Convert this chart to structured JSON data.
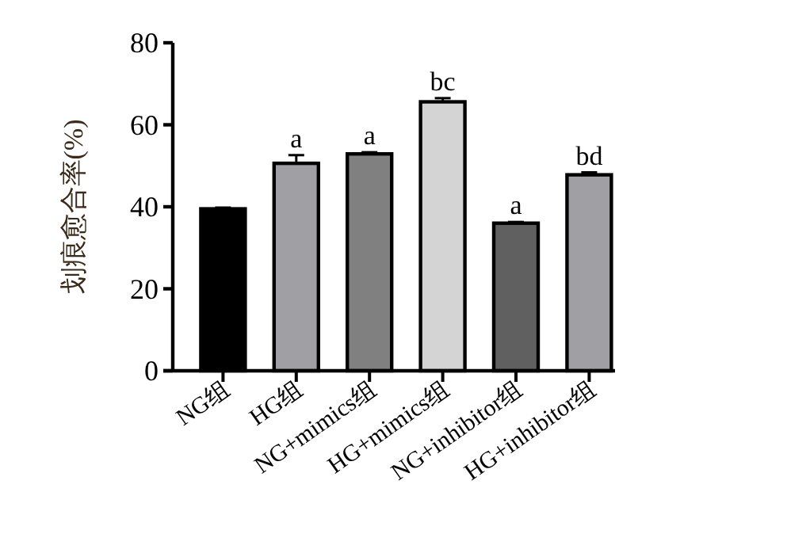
{
  "chart_data": {
    "type": "bar",
    "ylabel": "划痕愈合率(%)",
    "categories": [
      "NG组",
      "HG组",
      "NG+mimics组",
      "HG+mimics组",
      "NG+inhibitor组",
      "HG+inhibitor组"
    ],
    "values": [
      39.5,
      50.6,
      52.9,
      65.6,
      36.0,
      47.8
    ],
    "errors": [
      0.3,
      2.0,
      0.4,
      0.9,
      0.3,
      0.6
    ],
    "colors": [
      "#000000",
      "#a0a0a4",
      "#808080",
      "#d4d4d4",
      "#606060",
      "#a0a0a4"
    ],
    "ylim": [
      0,
      80
    ],
    "yticks": [
      0,
      20,
      40,
      60,
      80
    ],
    "grid": false,
    "annotations": [
      {
        "text": "a",
        "x": "HG组",
        "y": 52.6
      },
      {
        "text": "a",
        "x": "NG+mimics组",
        "y": 53.3
      },
      {
        "text": "bc",
        "x": "HG+mimics组",
        "y": 66.5
      },
      {
        "text": "a",
        "x": "NG+inhibitor组",
        "y": 36.3
      },
      {
        "text": "bd",
        "x": "HG+inhibitor组",
        "y": 48.4
      }
    ]
  }
}
